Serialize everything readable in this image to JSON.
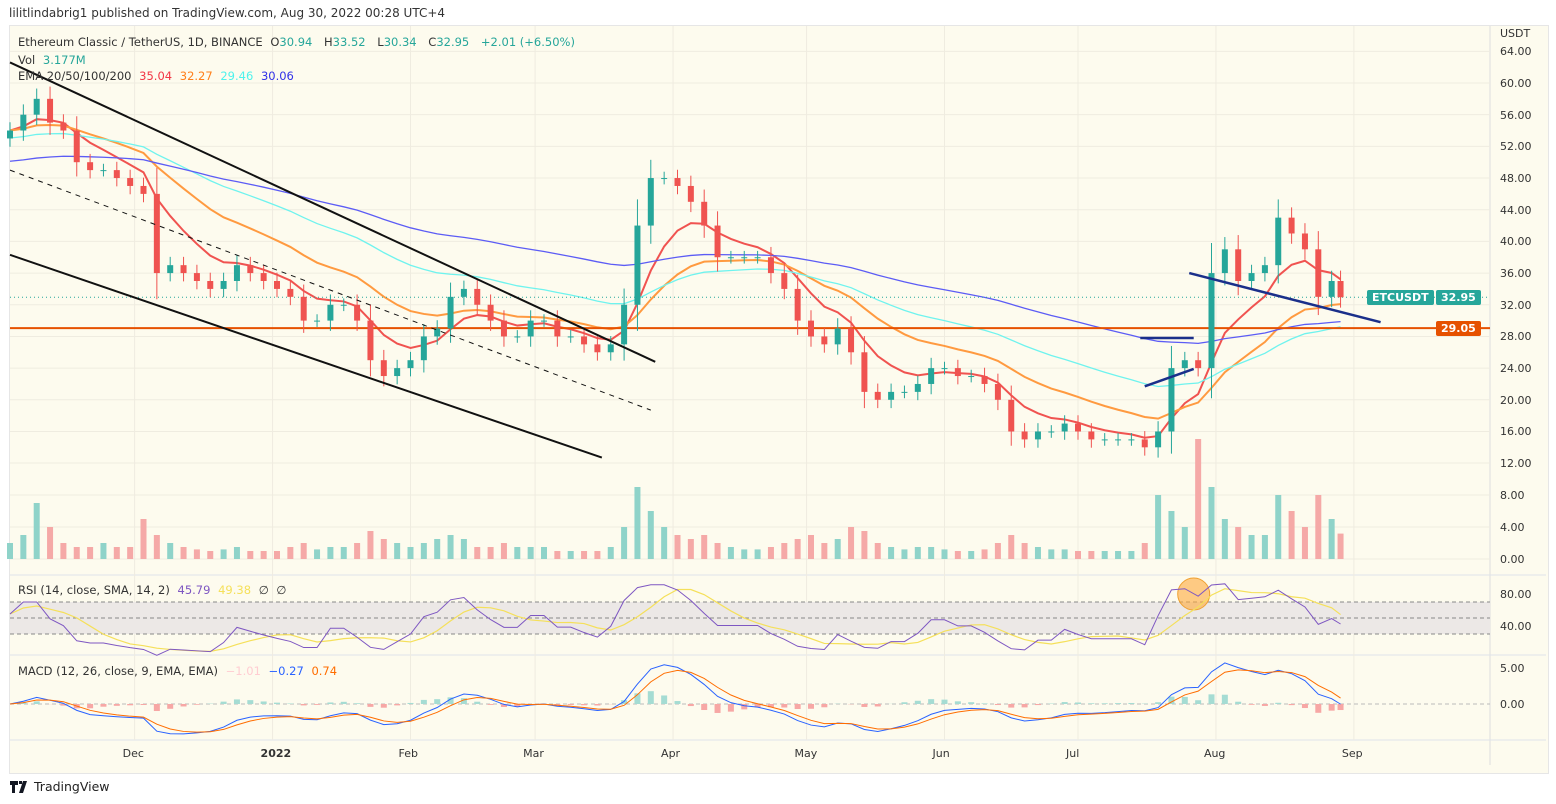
{
  "publish_line": "lilitlindabrig1 published on TradingView.com, Aug 30, 2022 00:28 UTC+4",
  "legend": {
    "symbol": "Ethereum Classic / TetherUS, 1D, BINANCE",
    "o_label": "O",
    "o": "30.94",
    "h_label": "H",
    "h": "33.52",
    "l_label": "L",
    "l": "30.34",
    "c_label": "C",
    "c": "32.95",
    "change": "+2.01 (+6.50%)",
    "vol_label": "Vol",
    "vol": "3.177M",
    "ema_label": "EMA 20/50/100/200",
    "ema20": "35.04",
    "ema50": "32.27",
    "ema100": "29.46",
    "ema200": "30.06",
    "rsi_label": "RSI (14, close, SMA, 14, 2)",
    "rsi": "45.79",
    "rsi_ma": "49.38",
    "rsi_x1": "∅",
    "rsi_x2": "∅",
    "macd_label": "MACD (12, 26, close, 9, EMA, EMA)",
    "macd_hist": "−1.01",
    "macd": "−0.27",
    "macd_signal": "0.74"
  },
  "price_axis": {
    "unit": "USDT",
    "ticks": [
      "64.00",
      "60.00",
      "56.00",
      "52.00",
      "48.00",
      "44.00",
      "40.00",
      "36.00",
      "32.00",
      "28.00",
      "24.00",
      "20.00",
      "16.00",
      "12.00",
      "8.00",
      "4.00",
      "0.00"
    ]
  },
  "rsi_axis": {
    "ticks": [
      "80.00",
      "40.00"
    ]
  },
  "macd_axis": {
    "ticks": [
      "5.00",
      "0.00"
    ]
  },
  "time_axis": {
    "ticks": [
      "Dec",
      "2022",
      "Feb",
      "Mar",
      "Apr",
      "May",
      "Jun",
      "Jul",
      "Aug",
      "Sep"
    ]
  },
  "tags": {
    "symbol": "ETCUSDT",
    "last_price": "32.95",
    "level_price": "29.05"
  },
  "colors": {
    "up": "#26a69a",
    "down": "#ef5350",
    "ema20": "#f05350",
    "ema50": "#ff9a40",
    "ema100": "#6ff3ee",
    "ema200": "#5c5cf5",
    "level": "#e65100",
    "trend_blue": "#1a2f8a"
  },
  "footer": {
    "brand": "TradingView"
  },
  "chart_data": {
    "type": "candlestick",
    "xlabel": "",
    "ylabel": "USDT",
    "ylim": [
      0,
      64
    ],
    "grid": true,
    "dates": [
      "2021-11-03",
      "2021-11-06",
      "2021-11-09",
      "2021-11-12",
      "2021-11-15",
      "2021-11-18",
      "2021-11-21",
      "2021-11-24",
      "2021-11-27",
      "2021-11-30",
      "2021-12-03",
      "2021-12-06",
      "2021-12-09",
      "2021-12-12",
      "2021-12-15",
      "2021-12-18",
      "2021-12-21",
      "2021-12-24",
      "2021-12-27",
      "2021-12-30",
      "2022-01-02",
      "2022-01-05",
      "2022-01-08",
      "2022-01-11",
      "2022-01-14",
      "2022-01-17",
      "2022-01-20",
      "2022-01-23",
      "2022-01-26",
      "2022-01-29",
      "2022-02-01",
      "2022-02-04",
      "2022-02-07",
      "2022-02-10",
      "2022-02-13",
      "2022-02-16",
      "2022-02-19",
      "2022-02-22",
      "2022-02-25",
      "2022-02-28",
      "2022-03-03",
      "2022-03-06",
      "2022-03-09",
      "2022-03-12",
      "2022-03-15",
      "2022-03-18",
      "2022-03-21",
      "2022-03-24",
      "2022-03-27",
      "2022-03-30",
      "2022-04-02",
      "2022-04-05",
      "2022-04-08",
      "2022-04-11",
      "2022-04-14",
      "2022-04-17",
      "2022-04-20",
      "2022-04-23",
      "2022-04-26",
      "2022-04-29",
      "2022-05-02",
      "2022-05-05",
      "2022-05-08",
      "2022-05-11",
      "2022-05-14",
      "2022-05-17",
      "2022-05-20",
      "2022-05-23",
      "2022-05-26",
      "2022-05-29",
      "2022-06-01",
      "2022-06-04",
      "2022-06-07",
      "2022-06-10",
      "2022-06-13",
      "2022-06-16",
      "2022-06-19",
      "2022-06-22",
      "2022-06-25",
      "2022-06-28",
      "2022-07-01",
      "2022-07-04",
      "2022-07-07",
      "2022-07-10",
      "2022-07-13",
      "2022-07-16",
      "2022-07-19",
      "2022-07-22",
      "2022-07-25",
      "2022-07-28",
      "2022-07-31",
      "2022-08-03",
      "2022-08-06",
      "2022-08-09",
      "2022-08-12",
      "2022-08-15",
      "2022-08-18",
      "2022-08-21",
      "2022-08-24",
      "2022-08-27",
      "2022-08-29"
    ],
    "close": [
      54,
      56,
      58,
      55,
      54,
      50,
      49,
      49,
      48,
      47,
      46,
      36,
      37,
      36,
      35,
      34,
      35,
      37,
      36,
      35,
      34,
      33,
      30,
      30,
      32,
      32,
      30,
      25,
      23,
      24,
      25,
      28,
      29,
      33,
      34,
      32,
      30,
      28,
      28,
      30,
      30,
      28,
      28,
      27,
      26,
      27,
      32,
      42,
      48,
      48,
      47,
      45,
      42,
      38,
      38,
      38,
      38,
      36,
      34,
      30,
      28,
      27,
      29,
      26,
      21,
      20,
      21,
      21,
      22,
      24,
      24,
      23,
      23,
      22,
      20,
      16,
      15,
      16,
      16,
      17,
      16,
      15,
      15,
      15,
      15,
      14,
      16,
      24,
      25,
      24,
      36,
      39,
      35,
      36,
      37,
      43,
      41,
      39,
      33,
      35,
      32.95
    ],
    "volume_millions": [
      2,
      3,
      7,
      4,
      2,
      1.5,
      1.5,
      2,
      1.5,
      1.5,
      5,
      3,
      2,
      1.5,
      1.2,
      1,
      1.2,
      1.5,
      1,
      1,
      1,
      1.5,
      2,
      1.2,
      1.5,
      1.5,
      2,
      3.5,
      2.5,
      2,
      1.5,
      2,
      2.5,
      3,
      2.5,
      1.5,
      1.5,
      2,
      1.5,
      1.5,
      1.5,
      1,
      1,
      1,
      1,
      1.5,
      4,
      9,
      6,
      4,
      3,
      2.5,
      3,
      2,
      1.5,
      1.2,
      1.2,
      1.5,
      2,
      2.5,
      3,
      2,
      2.5,
      4,
      3.5,
      2,
      1.5,
      1.2,
      1.5,
      1.5,
      1.2,
      1,
      1,
      1.2,
      2,
      3,
      2,
      1.5,
      1.2,
      1.2,
      1,
      1,
      1,
      1,
      1,
      2,
      8,
      6,
      4,
      15,
      9,
      5,
      4,
      3,
      3,
      8,
      6,
      4,
      8,
      5,
      3.177
    ],
    "rsi_bands": [
      70,
      50,
      30
    ],
    "ema_periods": [
      20,
      50,
      100,
      200
    ],
    "horizontal_level": 29.05,
    "drawings": [
      {
        "kind": "trendline",
        "color": "black",
        "from": [
          "2021-11-03",
          62.6
        ],
        "to": [
          "2022-03-28",
          24.8
        ]
      },
      {
        "kind": "trendline",
        "color": "black",
        "from": [
          "2021-11-03",
          38.3
        ],
        "to": [
          "2022-03-16",
          12.7
        ]
      },
      {
        "kind": "dashed",
        "color": "black",
        "from": [
          "2021-11-03",
          49.0
        ],
        "to": [
          "2022-03-27",
          18.7
        ]
      },
      {
        "kind": "trendline",
        "color": "blue",
        "from": [
          "2022-07-26",
          36.0
        ],
        "to": [
          "2022-09-07",
          29.8
        ]
      },
      {
        "kind": "trendline",
        "color": "blue",
        "from": [
          "2022-07-15",
          27.8
        ],
        "to": [
          "2022-07-27",
          27.8
        ]
      },
      {
        "kind": "trendline",
        "color": "blue",
        "from": [
          "2022-07-16",
          21.7
        ],
        "to": [
          "2022-07-27",
          23.9
        ]
      },
      {
        "kind": "circle",
        "pane": "rsi",
        "at": [
          "2022-07-27",
          80
        ]
      }
    ]
  }
}
